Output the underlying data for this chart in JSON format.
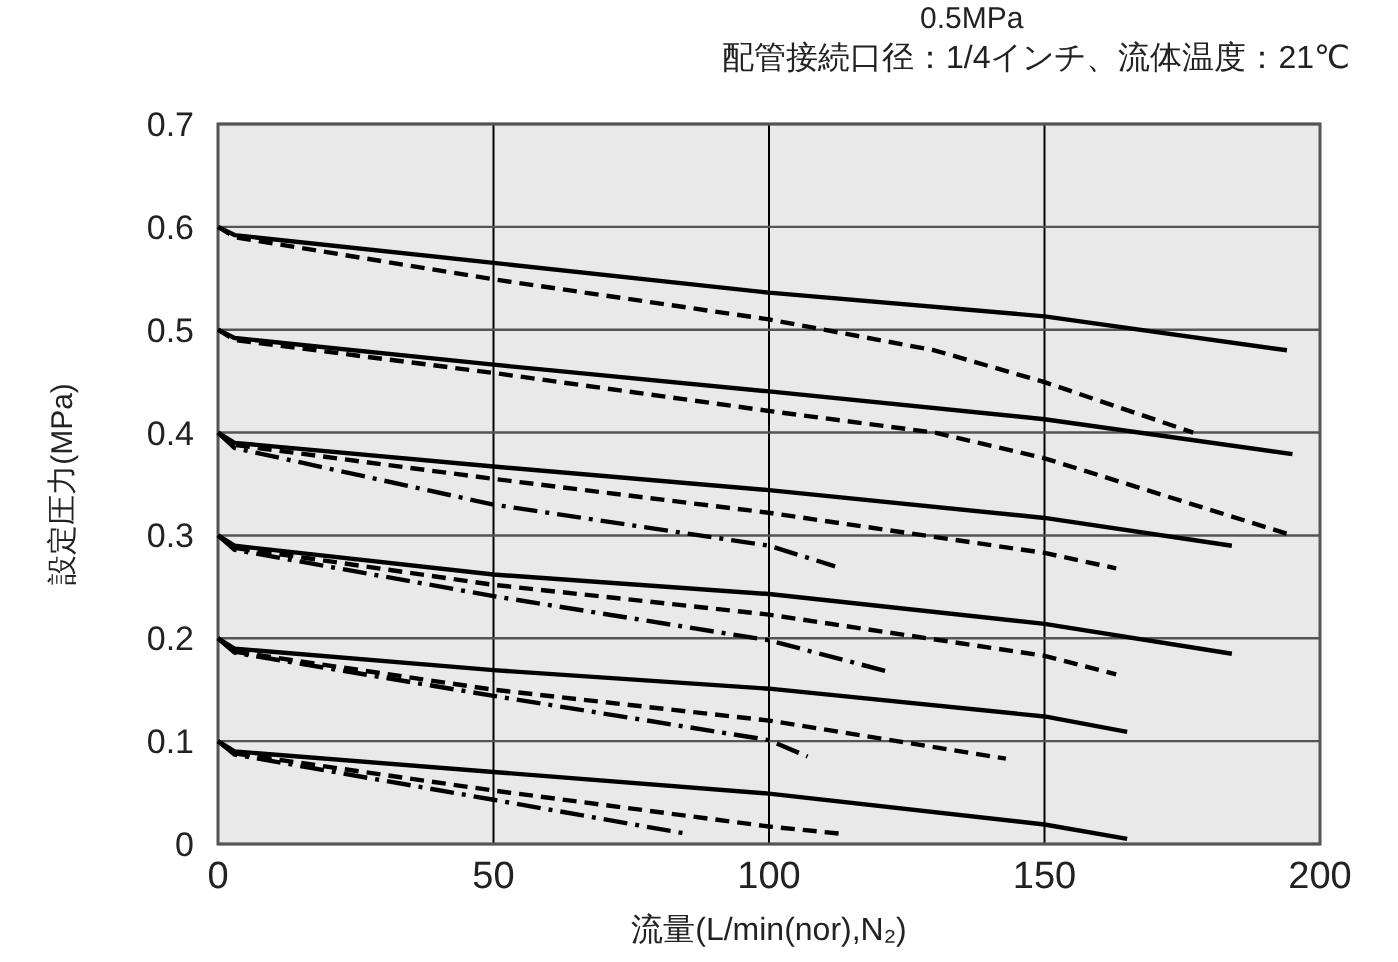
{
  "chart_data": {
    "type": "line",
    "subtitle": "配管接続口径：1/4インチ、流体温度：21℃",
    "annotations": [
      "0.5MPa"
    ],
    "xlabel": "流量(L/min(nor),N₂)",
    "ylabel": "設定圧力(MPa)",
    "xlim": [
      0,
      200
    ],
    "ylim": [
      0,
      0.7
    ],
    "xticks": [
      0,
      50,
      100,
      150,
      200
    ],
    "yticks": [
      0,
      0.1,
      0.2,
      0.3,
      0.4,
      0.5,
      0.6,
      0.7
    ],
    "grid": true,
    "marker": "none",
    "series": [
      {
        "color": "#000000",
        "line_style": "solid",
        "x": [
          0,
          3,
          50,
          100,
          150,
          194
        ],
        "values": [
          0.6,
          0.592,
          0.565,
          0.536,
          0.513,
          0.48
        ]
      },
      {
        "color": "#000000",
        "line_style": "dashed",
        "x": [
          0,
          3,
          50,
          100,
          130,
          150,
          177
        ],
        "values": [
          0.6,
          0.59,
          0.549,
          0.51,
          0.48,
          0.449,
          0.4
        ]
      },
      {
        "color": "#000000",
        "line_style": "solid",
        "x": [
          0,
          3,
          50,
          100,
          150,
          195
        ],
        "values": [
          0.5,
          0.492,
          0.466,
          0.44,
          0.413,
          0.379
        ]
      },
      {
        "color": "#000000",
        "line_style": "dashed",
        "x": [
          0,
          3,
          50,
          100,
          130,
          150,
          195
        ],
        "values": [
          0.5,
          0.49,
          0.458,
          0.421,
          0.4,
          0.375,
          0.3
        ]
      },
      {
        "color": "#000000",
        "line_style": "solid",
        "x": [
          0,
          3,
          50,
          100,
          150,
          184
        ],
        "values": [
          0.4,
          0.39,
          0.367,
          0.344,
          0.317,
          0.29
        ]
      },
      {
        "color": "#000000",
        "line_style": "dashed",
        "x": [
          0,
          3,
          50,
          100,
          150,
          163
        ],
        "values": [
          0.4,
          0.388,
          0.355,
          0.322,
          0.283,
          0.268
        ]
      },
      {
        "color": "#000000",
        "line_style": "dashdot",
        "x": [
          0,
          3,
          50,
          100,
          112
        ],
        "values": [
          0.4,
          0.385,
          0.33,
          0.29,
          0.27
        ]
      },
      {
        "color": "#000000",
        "line_style": "solid",
        "x": [
          0,
          3,
          50,
          100,
          150,
          184
        ],
        "values": [
          0.3,
          0.29,
          0.262,
          0.243,
          0.214,
          0.185
        ]
      },
      {
        "color": "#000000",
        "line_style": "dashed",
        "x": [
          0,
          3,
          50,
          100,
          150,
          163
        ],
        "values": [
          0.3,
          0.288,
          0.252,
          0.223,
          0.183,
          0.165
        ]
      },
      {
        "color": "#000000",
        "line_style": "dashdot",
        "x": [
          0,
          3,
          50,
          100,
          122
        ],
        "values": [
          0.3,
          0.286,
          0.241,
          0.198,
          0.167
        ]
      },
      {
        "color": "#000000",
        "line_style": "solid",
        "x": [
          0,
          3,
          50,
          100,
          150,
          165
        ],
        "values": [
          0.2,
          0.19,
          0.169,
          0.151,
          0.124,
          0.109
        ]
      },
      {
        "color": "#000000",
        "line_style": "dashed",
        "x": [
          0,
          3,
          50,
          100,
          143
        ],
        "values": [
          0.2,
          0.187,
          0.15,
          0.12,
          0.083
        ]
      },
      {
        "color": "#000000",
        "line_style": "dashdot",
        "x": [
          0,
          3,
          50,
          100,
          107
        ],
        "values": [
          0.2,
          0.186,
          0.144,
          0.101,
          0.085
        ]
      },
      {
        "color": "#000000",
        "line_style": "solid",
        "x": [
          0,
          3,
          50,
          100,
          150,
          165
        ],
        "values": [
          0.1,
          0.09,
          0.07,
          0.049,
          0.019,
          0.005
        ]
      },
      {
        "color": "#000000",
        "line_style": "dashed",
        "x": [
          0,
          3,
          50,
          100,
          113
        ],
        "values": [
          0.1,
          0.088,
          0.052,
          0.017,
          0.01
        ]
      },
      {
        "color": "#000000",
        "line_style": "dashdot",
        "x": [
          0,
          3,
          50,
          85
        ],
        "values": [
          0.1,
          0.087,
          0.043,
          0.01
        ]
      }
    ]
  }
}
